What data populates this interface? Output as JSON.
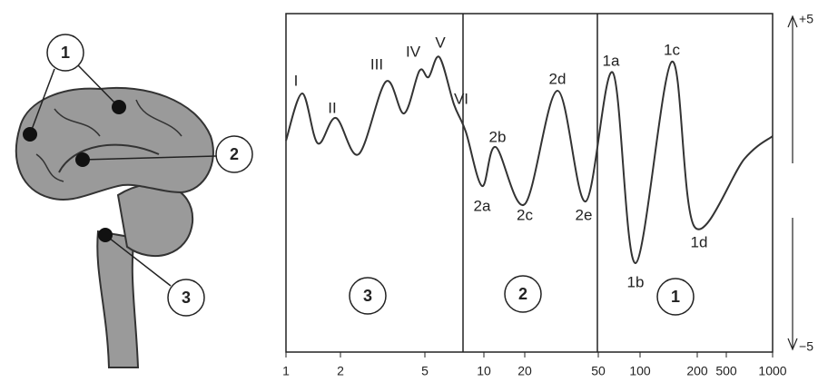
{
  "brain": {
    "labels": [
      "1",
      "2",
      "3"
    ]
  },
  "plot": {
    "y_labels": [
      "+5",
      "−5"
    ],
    "xticks": [
      1,
      2,
      5,
      10,
      20,
      50,
      100,
      200,
      500,
      1000
    ],
    "peaks": [
      "I",
      "II",
      "III",
      "IV",
      "V",
      "VI",
      "2a",
      "2b",
      "2c",
      "2d",
      "2e",
      "1a",
      "1b",
      "1c",
      "1d"
    ],
    "regions": [
      "3",
      "2",
      "1"
    ]
  }
}
